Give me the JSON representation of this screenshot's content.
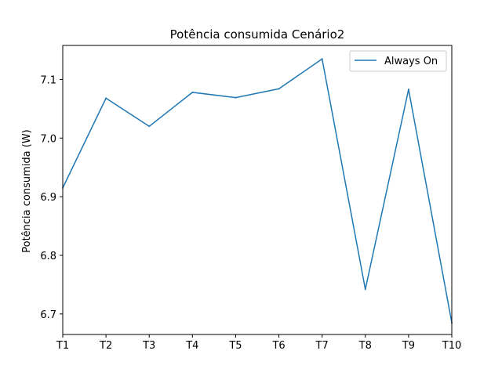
{
  "chart_data": {
    "type": "line",
    "title": "Potência consumida Cenário2",
    "xlabel": "",
    "ylabel": "Potência consumida (W)",
    "categories": [
      "T1",
      "T2",
      "T3",
      "T4",
      "T5",
      "T6",
      "T7",
      "T8",
      "T9",
      "T10"
    ],
    "series": [
      {
        "name": "Always On",
        "color": "#1f77b4",
        "values": [
          6.915,
          7.068,
          7.02,
          7.078,
          7.069,
          7.084,
          7.135,
          6.742,
          7.083,
          6.685
        ]
      }
    ],
    "yticks": [
      "6.7",
      "6.8",
      "6.9",
      "7.0",
      "7.1"
    ],
    "ylim": [
      6.665,
      7.158
    ],
    "grid": false,
    "legend_position": "top-right"
  }
}
